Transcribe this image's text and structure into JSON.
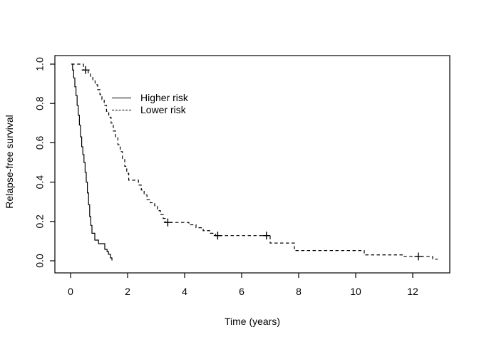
{
  "figure": {
    "background_color": "#ffffff",
    "line_color": "#000000",
    "text_color": "#000000"
  },
  "chart_data": {
    "type": "line",
    "subtype": "kaplan-meier-step-curve",
    "title": "",
    "xlabel": "Time (years)",
    "ylabel": "Relapse-free survival",
    "xlim": [
      -0.55,
      13.35
    ],
    "ylim": [
      0,
      1
    ],
    "x_ticks": [
      0,
      2,
      4,
      6,
      8,
      10,
      12
    ],
    "x_tick_labels": [
      "0",
      "2",
      "4",
      "6",
      "8",
      "10",
      "12"
    ],
    "y_ticks": [
      0.0,
      0.2,
      0.4,
      0.6,
      0.8,
      1.0
    ],
    "y_tick_labels": [
      "0.0",
      "0.2",
      "0.4",
      "0.6",
      "0.8",
      "1.0"
    ],
    "grid": false,
    "legend_position": "inside-upper-left",
    "censor_marker": "plus",
    "series": [
      {
        "name": "Higher risk",
        "line_style": "solid",
        "color": "#000000",
        "steps": [
          [
            0.03,
            1.0
          ],
          [
            0.07,
            0.97
          ],
          [
            0.11,
            0.93
          ],
          [
            0.15,
            0.885
          ],
          [
            0.19,
            0.84
          ],
          [
            0.23,
            0.79
          ],
          [
            0.27,
            0.74
          ],
          [
            0.31,
            0.69
          ],
          [
            0.35,
            0.63
          ],
          [
            0.39,
            0.58
          ],
          [
            0.43,
            0.54
          ],
          [
            0.47,
            0.5
          ],
          [
            0.51,
            0.45
          ],
          [
            0.55,
            0.4
          ],
          [
            0.59,
            0.345
          ],
          [
            0.63,
            0.285
          ],
          [
            0.67,
            0.225
          ],
          [
            0.71,
            0.18
          ],
          [
            0.75,
            0.14
          ],
          [
            0.85,
            0.105
          ],
          [
            0.98,
            0.087
          ],
          [
            1.2,
            0.058
          ],
          [
            1.28,
            0.047
          ],
          [
            1.33,
            0.033
          ],
          [
            1.4,
            0.015
          ],
          [
            1.45,
            0.004
          ]
        ],
        "end_time": 1.47,
        "censor_marks": []
      },
      {
        "name": "Lower risk",
        "line_style": "dashed",
        "color": "#000000",
        "steps": [
          [
            0.03,
            1.0
          ],
          [
            0.45,
            0.97
          ],
          [
            0.62,
            0.955
          ],
          [
            0.7,
            0.935
          ],
          [
            0.78,
            0.915
          ],
          [
            0.86,
            0.895
          ],
          [
            0.95,
            0.87
          ],
          [
            1.03,
            0.845
          ],
          [
            1.1,
            0.82
          ],
          [
            1.18,
            0.79
          ],
          [
            1.26,
            0.76
          ],
          [
            1.34,
            0.73
          ],
          [
            1.42,
            0.7
          ],
          [
            1.5,
            0.66
          ],
          [
            1.58,
            0.625
          ],
          [
            1.66,
            0.59
          ],
          [
            1.74,
            0.555
          ],
          [
            1.82,
            0.52
          ],
          [
            1.9,
            0.48
          ],
          [
            1.97,
            0.445
          ],
          [
            2.04,
            0.41
          ],
          [
            2.38,
            0.385
          ],
          [
            2.48,
            0.36
          ],
          [
            2.58,
            0.335
          ],
          [
            2.68,
            0.31
          ],
          [
            2.8,
            0.295
          ],
          [
            2.95,
            0.28
          ],
          [
            3.05,
            0.255
          ],
          [
            3.15,
            0.235
          ],
          [
            3.25,
            0.215
          ],
          [
            3.32,
            0.195
          ],
          [
            4.15,
            0.183
          ],
          [
            4.4,
            0.168
          ],
          [
            4.65,
            0.153
          ],
          [
            4.9,
            0.14
          ],
          [
            5.08,
            0.128
          ],
          [
            7.0,
            0.09
          ],
          [
            7.85,
            0.052
          ],
          [
            10.3,
            0.03
          ],
          [
            11.7,
            0.022
          ],
          [
            12.7,
            0.008
          ]
        ],
        "end_time": 12.88,
        "censor_marks": [
          [
            0.53,
            0.97
          ],
          [
            3.41,
            0.195
          ],
          [
            5.16,
            0.128
          ],
          [
            6.87,
            0.128
          ],
          [
            12.2,
            0.022
          ]
        ]
      }
    ]
  }
}
